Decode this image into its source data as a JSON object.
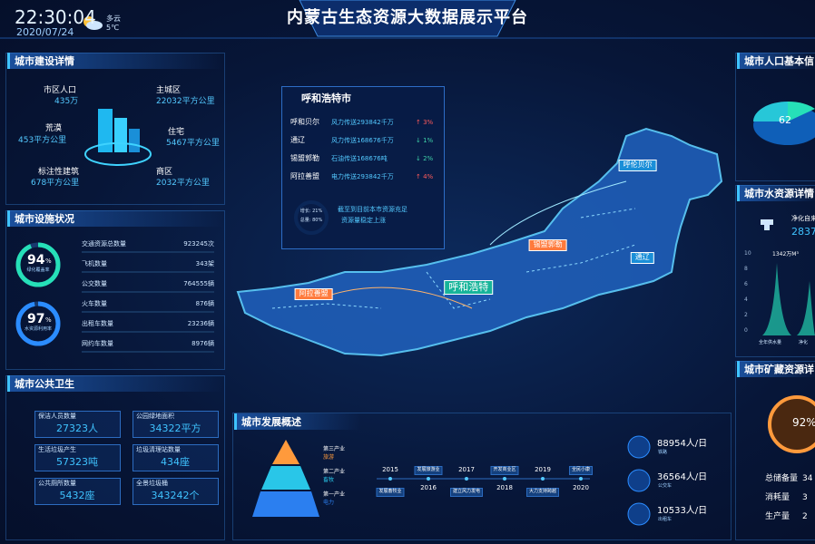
{
  "header": {
    "time": "22:30:04",
    "date": "2020/07/24",
    "weather": "多云",
    "temperature": "5℃",
    "title": "内蒙古生态资源大数据展示平台"
  },
  "construction": {
    "title": "城市建设详情",
    "items": [
      {
        "label": "市区人口",
        "value": "435万"
      },
      {
        "label": "主城区",
        "value": "22032平方公里"
      },
      {
        "label": "荒漠",
        "value": "453平方公里"
      },
      {
        "label": "住宅",
        "value": "5467平方公里"
      },
      {
        "label": "标注性建筑",
        "value": "678平方公里"
      },
      {
        "label": "商区",
        "value": "2032平方公里"
      }
    ]
  },
  "facilities": {
    "title": "城市设施状况",
    "rings": [
      {
        "value": 94,
        "unit": "%",
        "label": "绿化覆盖率"
      },
      {
        "value": 97,
        "unit": "%",
        "label": "水资源利用率"
      }
    ],
    "bars": [
      {
        "label": "交通资源总数量",
        "value": "923245次"
      },
      {
        "label": "飞机数量",
        "value": "343架"
      },
      {
        "label": "公交数量",
        "value": "764555辆"
      },
      {
        "label": "火车数量",
        "value": "876辆"
      },
      {
        "label": "出租车数量",
        "value": "23236辆"
      },
      {
        "label": "网约车数量",
        "value": "8976辆"
      }
    ]
  },
  "health": {
    "title": "城市公共卫生",
    "items": [
      {
        "label": "保洁人员数量",
        "value": "27323人"
      },
      {
        "label": "公园绿地面积",
        "value": "34322平方"
      },
      {
        "label": "生活垃圾产生",
        "value": "57323吨"
      },
      {
        "label": "垃圾清理站数量",
        "value": "434座"
      },
      {
        "label": "公共厕所数量",
        "value": "5432座"
      },
      {
        "label": "全景垃圾桶",
        "value": "343242个"
      }
    ]
  },
  "popup": {
    "title": "呼和浩特市",
    "rows": [
      {
        "region": "呼和贝尔",
        "desc": "风力传送293842千万",
        "change": "↑ 3%"
      },
      {
        "region": "通辽",
        "desc": "风力传送168676千万",
        "change": "↓ 1%"
      },
      {
        "region": "锡盟郭勒",
        "desc": "石油传送168676吨",
        "change": "↓ 2%"
      },
      {
        "region": "阿拉善盟",
        "desc": "电力传送293842千万",
        "change": "↑ 4%"
      }
    ],
    "ring": [
      "增长: 21%",
      "总量: 80%"
    ],
    "note": [
      "截至到目前本市资源充足",
      "资源量稳定上涨"
    ]
  },
  "map": {
    "labels": [
      "呼伦贝尔",
      "锡盟郭勒",
      "通辽",
      "阿拉善盟",
      "呼和浩特"
    ]
  },
  "development": {
    "title": "城市发展概述",
    "pyramid": [
      {
        "label": "第三产业",
        "sub": "旅游"
      },
      {
        "label": "第二产业",
        "sub": "畜牧"
      },
      {
        "label": "第一产业",
        "sub": "电力"
      }
    ],
    "timeline": [
      {
        "year": "2015",
        "event": "发展畜牧业"
      },
      {
        "year": "2016",
        "event": "发展旅游业"
      },
      {
        "year": "2017",
        "event": "建立风力发电"
      },
      {
        "year": "2018",
        "event": "开发商业区"
      },
      {
        "year": "2019",
        "event": "大力支持跨越"
      },
      {
        "year": "2020",
        "event": "全民小康"
      }
    ],
    "traffic": [
      {
        "value": "88954人/日",
        "label": "铁路"
      },
      {
        "value": "36564人/日",
        "label": "公交车"
      },
      {
        "value": "10533人/日",
        "label": "出租车"
      }
    ]
  },
  "population": {
    "title": "城市人口基本信",
    "value": "62"
  },
  "water": {
    "title": "城市水资源详情",
    "label": "净化自来",
    "value": "2837",
    "yticks": [
      "10",
      "8",
      "6",
      "4",
      "2",
      "0"
    ],
    "peak": "1342万M³",
    "xlabels": [
      "全年供水量",
      "净化"
    ]
  },
  "minerals": {
    "title": "城市矿藏资源详",
    "percent": "92%",
    "rows": [
      {
        "label": "总储备量",
        "value": "34"
      },
      {
        "label": "消耗量",
        "value": "3"
      },
      {
        "label": "生产量",
        "value": "2"
      }
    ]
  }
}
